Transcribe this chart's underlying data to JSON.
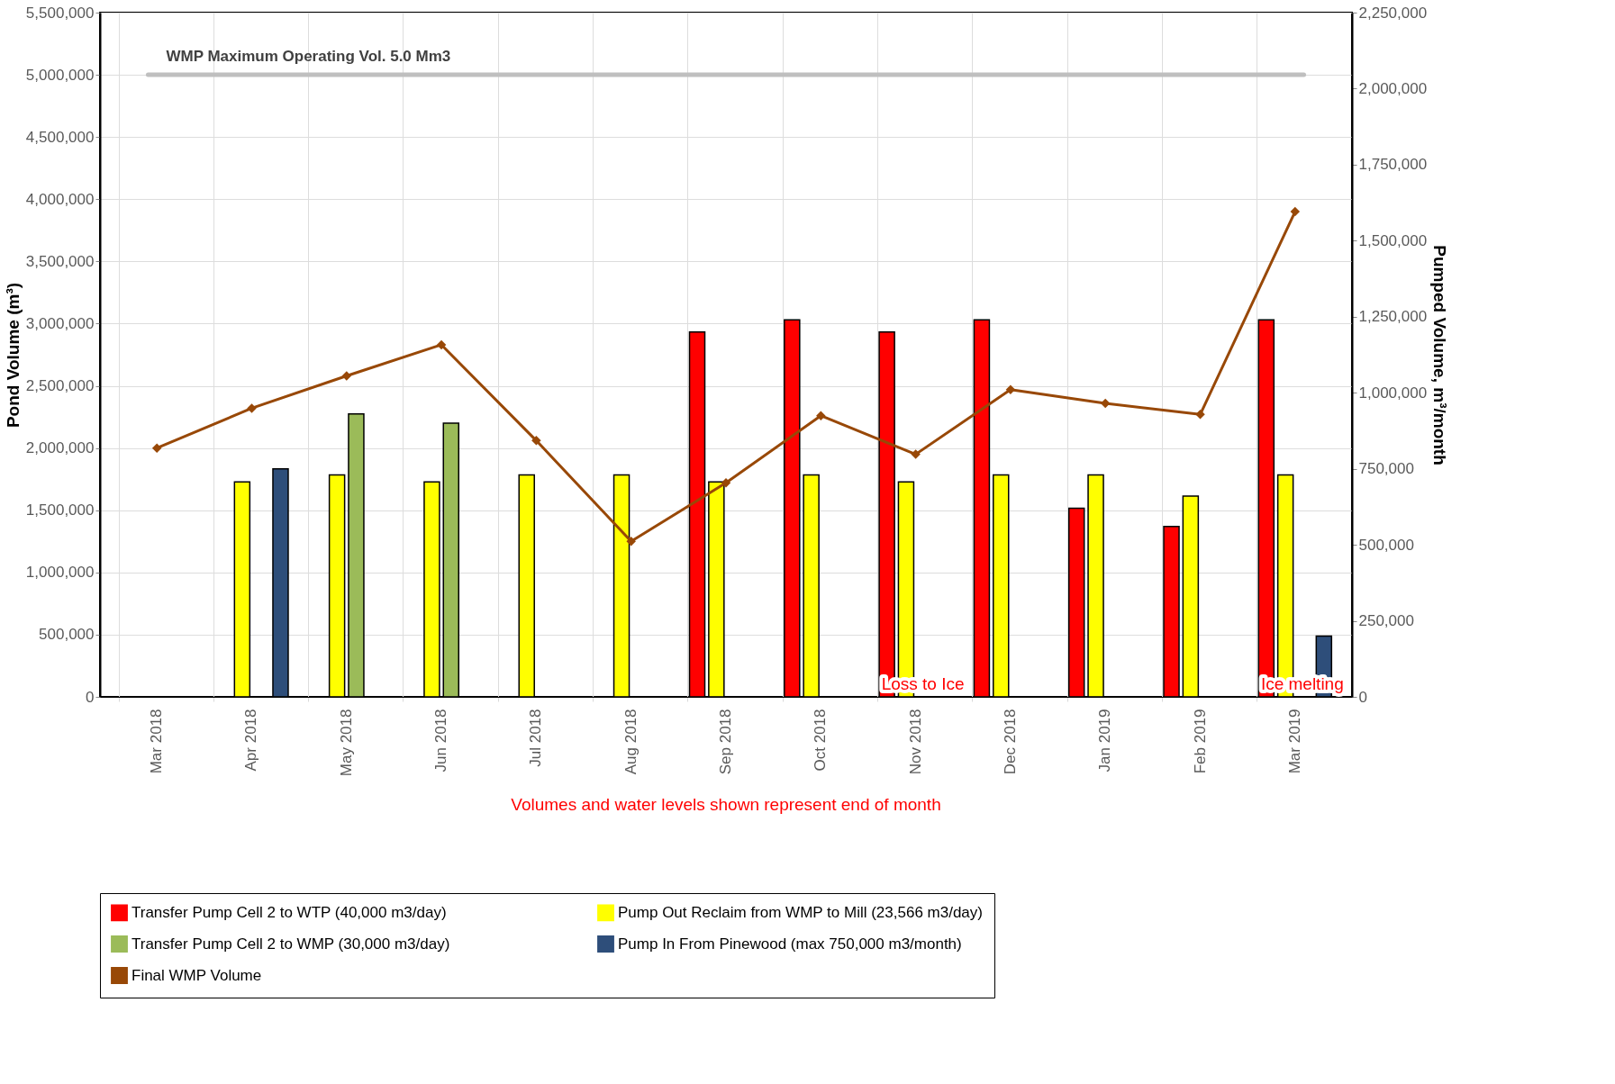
{
  "chart_data": {
    "type": "bar",
    "categories": [
      "Mar 2018",
      "Apr 2018",
      "May 2018",
      "Jun 2018",
      "Jul 2018",
      "Aug 2018",
      "Sep 2018",
      "Oct 2018",
      "Nov 2018",
      "Dec 2018",
      "Jan 2019",
      "Feb 2019",
      "Mar 2019"
    ],
    "ylabel": "Pond Volume (m³)",
    "y2label": "Pumped Volume, m³/month",
    "ylim": [
      0,
      5500000
    ],
    "yticks": [
      0,
      {
        "value": 500000,
        "label": "500,000"
      },
      {
        "value": 1000000,
        "label": "1,000,000"
      },
      {
        "value": 1500000,
        "label": "1,500,000"
      },
      {
        "value": 2000000,
        "label": "2,000,000"
      },
      {
        "value": 2500000,
        "label": "2,500,000"
      },
      {
        "value": 3000000,
        "label": "3,000,000"
      },
      {
        "value": 3500000,
        "label": "3,500,000"
      },
      {
        "value": 4000000,
        "label": "4,000,000"
      },
      {
        "value": 4500000,
        "label": "4,500,000"
      },
      {
        "value": 5000000,
        "label": "5,000,000"
      },
      {
        "value": 5500000,
        "label": "5,500,000"
      }
    ],
    "y2lim": [
      0,
      2250000
    ],
    "y2ticks": [
      0,
      {
        "value": 250000,
        "label": "250,000"
      },
      {
        "value": 500000,
        "label": "500,000"
      },
      {
        "value": 750000,
        "label": "750,000"
      },
      {
        "value": 1000000,
        "label": "1,000,000"
      },
      {
        "value": 1250000,
        "label": "1,250,000"
      },
      {
        "value": 1500000,
        "label": "1,500,000"
      },
      {
        "value": 1750000,
        "label": "1,750,000"
      },
      {
        "value": 2000000,
        "label": "2,000,000"
      },
      {
        "value": 2250000,
        "label": "2,250,000"
      }
    ],
    "grid": true,
    "legend": "bottom",
    "series": [
      {
        "name": "Transfer Pump Cell 2 to WTP (40,000 m3/day)",
        "axis": "y2",
        "color": "#ff0000",
        "values": [
          null,
          null,
          null,
          null,
          null,
          null,
          1200000,
          1240000,
          1200000,
          1240000,
          620000,
          560000,
          1240000
        ]
      },
      {
        "name": "Pump Out Reclaim from WMP to Mill (23,566 m3/day)",
        "axis": "y2",
        "color": "#ffff00",
        "values": [
          null,
          707000,
          730000,
          707000,
          730000,
          730000,
          707000,
          730000,
          707000,
          730000,
          730000,
          660000,
          730000
        ]
      },
      {
        "name": "Transfer Pump Cell 2 to WMP (30,000 m3/day)",
        "axis": "y2",
        "color": "#9bbb59",
        "values": [
          null,
          null,
          930000,
          900000,
          null,
          null,
          null,
          null,
          null,
          null,
          null,
          null,
          null
        ]
      },
      {
        "name": "Pump In From Pinewood (max 750,000 m3/month)",
        "axis": "y2",
        "color": "#2e4e7a",
        "values": [
          null,
          750000,
          null,
          null,
          null,
          null,
          null,
          null,
          null,
          null,
          null,
          null,
          200000
        ]
      },
      {
        "name": "Final WMP Volume",
        "type": "line",
        "axis": "y",
        "color": "#984807",
        "marker": "diamond",
        "values": [
          2000000,
          2320000,
          2580000,
          2830000,
          2060000,
          1250000,
          1720000,
          2260000,
          1950000,
          2470000,
          2360000,
          2270000,
          3900000
        ]
      }
    ],
    "ref_lines": [
      {
        "axis": "y",
        "value": 5000000,
        "label": "WMP Maximum Operating Vol. 5.0 Mm3",
        "color": "#bfbfbf"
      }
    ],
    "annotations": [
      {
        "text": "Loss to Ice",
        "x": "Nov 2018",
        "y": 0
      },
      {
        "text": "Ice melting",
        "x": "Mar 2019",
        "y": 0
      },
      "Volumes and water levels shown represent end of month"
    ]
  }
}
